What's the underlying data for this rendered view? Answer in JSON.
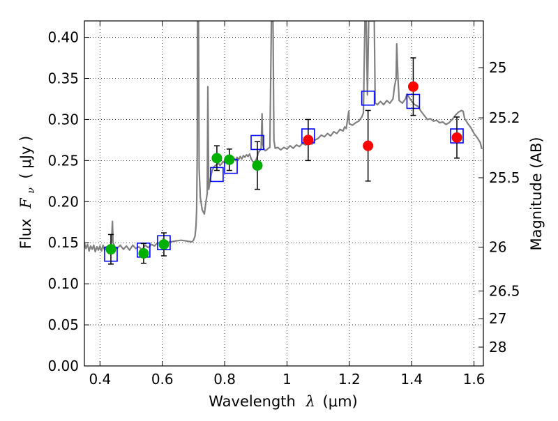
{
  "chart_data": {
    "type": "scatter",
    "xlabel": "Wavelength",
    "xlabel_symbol": "λ",
    "xlabel_unit": "(μm)",
    "ylabel": "Flux",
    "ylabel_symbol": "F",
    "ylabel_subscript": "ν",
    "ylabel_unit": "( μJy )",
    "y2label": "Magnitude (AB)",
    "xlim": [
      0.35,
      1.63
    ],
    "ylim": [
      0.0,
      0.42
    ],
    "grid": true,
    "grid_style": "dotted",
    "x_ticks": [
      0.4,
      0.6,
      0.8,
      1.0,
      1.2,
      1.4,
      1.6
    ],
    "x_tick_labels": [
      "0.4",
      "0.6",
      "0.8",
      "1",
      "1.2",
      "1.4",
      "1.6"
    ],
    "y_ticks": [
      0.0,
      0.05,
      0.1,
      0.15,
      0.2,
      0.25,
      0.3,
      0.35,
      0.4
    ],
    "y_tick_labels": [
      "0.00",
      "0.05",
      "0.10",
      "0.15",
      "0.20",
      "0.25",
      "0.30",
      "0.35",
      "0.40"
    ],
    "y2_ticks": [
      {
        "label": "25",
        "flux": 0.3631
      },
      {
        "label": "25.2",
        "flux": 0.302
      },
      {
        "label": "25.5",
        "flux": 0.2291
      },
      {
        "label": "26",
        "flux": 0.1445
      },
      {
        "label": "26.5",
        "flux": 0.0912
      },
      {
        "label": "27",
        "flux": 0.0575
      },
      {
        "label": "28",
        "flux": 0.0229
      }
    ],
    "colors": {
      "model": "#808080",
      "model_photometry": "#0000ff",
      "green_points": "#00b000",
      "red_points": "#ff0000",
      "errorbar": "#000000"
    },
    "series": [
      {
        "kind": "line",
        "points": [
          [
            0.35,
            0.15
          ],
          [
            0.355,
            0.143
          ],
          [
            0.36,
            0.148
          ],
          [
            0.365,
            0.14
          ],
          [
            0.37,
            0.146
          ],
          [
            0.375,
            0.142
          ],
          [
            0.38,
            0.147
          ],
          [
            0.385,
            0.139
          ],
          [
            0.39,
            0.145
          ],
          [
            0.395,
            0.141
          ],
          [
            0.4,
            0.146
          ],
          [
            0.405,
            0.14
          ],
          [
            0.41,
            0.147
          ],
          [
            0.415,
            0.141
          ],
          [
            0.42,
            0.145
          ],
          [
            0.425,
            0.142
          ],
          [
            0.43,
            0.146
          ],
          [
            0.435,
            0.143
          ],
          [
            0.438,
            0.158
          ],
          [
            0.44,
            0.176
          ],
          [
            0.442,
            0.15
          ],
          [
            0.448,
            0.145
          ],
          [
            0.455,
            0.143
          ],
          [
            0.465,
            0.147
          ],
          [
            0.475,
            0.142
          ],
          [
            0.485,
            0.146
          ],
          [
            0.495,
            0.141
          ],
          [
            0.505,
            0.147
          ],
          [
            0.515,
            0.143
          ],
          [
            0.525,
            0.145
          ],
          [
            0.535,
            0.141
          ],
          [
            0.545,
            0.147
          ],
          [
            0.555,
            0.144
          ],
          [
            0.565,
            0.148
          ],
          [
            0.575,
            0.146
          ],
          [
            0.585,
            0.15
          ],
          [
            0.595,
            0.149
          ],
          [
            0.605,
            0.153
          ],
          [
            0.615,
            0.15
          ],
          [
            0.625,
            0.151
          ],
          [
            0.64,
            0.152
          ],
          [
            0.66,
            0.153
          ],
          [
            0.68,
            0.152
          ],
          [
            0.695,
            0.151
          ],
          [
            0.7,
            0.153
          ],
          [
            0.705,
            0.158
          ],
          [
            0.708,
            0.17
          ],
          [
            0.71,
            0.19
          ],
          [
            0.712,
            0.26
          ],
          [
            0.713,
            0.42
          ],
          [
            0.716,
            0.42
          ],
          [
            0.718,
            0.24
          ],
          [
            0.722,
            0.205
          ],
          [
            0.728,
            0.19
          ],
          [
            0.735,
            0.185
          ],
          [
            0.74,
            0.2
          ],
          [
            0.744,
            0.21
          ],
          [
            0.746,
            0.34
          ],
          [
            0.749,
            0.215
          ],
          [
            0.755,
            0.23
          ],
          [
            0.76,
            0.238
          ],
          [
            0.765,
            0.242
          ],
          [
            0.77,
            0.244
          ],
          [
            0.775,
            0.245
          ],
          [
            0.78,
            0.247
          ],
          [
            0.785,
            0.244
          ],
          [
            0.79,
            0.246
          ],
          [
            0.795,
            0.249
          ],
          [
            0.8,
            0.247
          ],
          [
            0.805,
            0.251
          ],
          [
            0.81,
            0.248
          ],
          [
            0.815,
            0.252
          ],
          [
            0.82,
            0.249
          ],
          [
            0.825,
            0.251
          ],
          [
            0.83,
            0.253
          ],
          [
            0.835,
            0.25
          ],
          [
            0.84,
            0.254
          ],
          [
            0.845,
            0.251
          ],
          [
            0.85,
            0.255
          ],
          [
            0.855,
            0.252
          ],
          [
            0.86,
            0.256
          ],
          [
            0.865,
            0.254
          ],
          [
            0.87,
            0.257
          ],
          [
            0.875,
            0.255
          ],
          [
            0.88,
            0.258
          ],
          [
            0.885,
            0.252
          ],
          [
            0.89,
            0.249
          ],
          [
            0.895,
            0.248
          ],
          [
            0.9,
            0.25
          ],
          [
            0.905,
            0.255
          ],
          [
            0.908,
            0.26
          ],
          [
            0.913,
            0.262
          ],
          [
            0.917,
            0.265
          ],
          [
            0.92,
            0.307
          ],
          [
            0.922,
            0.27
          ],
          [
            0.925,
            0.265
          ],
          [
            0.93,
            0.262
          ],
          [
            0.935,
            0.263
          ],
          [
            0.94,
            0.265
          ],
          [
            0.945,
            0.266
          ],
          [
            0.95,
            0.42
          ],
          [
            0.955,
            0.42
          ],
          [
            0.958,
            0.275
          ],
          [
            0.962,
            0.265
          ],
          [
            0.97,
            0.266
          ],
          [
            0.98,
            0.263
          ],
          [
            0.99,
            0.266
          ],
          [
            1.0,
            0.264
          ],
          [
            1.01,
            0.268
          ],
          [
            1.02,
            0.265
          ],
          [
            1.03,
            0.269
          ],
          [
            1.04,
            0.267
          ],
          [
            1.05,
            0.271
          ],
          [
            1.06,
            0.269
          ],
          [
            1.07,
            0.272
          ],
          [
            1.08,
            0.27
          ],
          [
            1.09,
            0.275
          ],
          [
            1.1,
            0.277
          ],
          [
            1.11,
            0.281
          ],
          [
            1.12,
            0.279
          ],
          [
            1.13,
            0.283
          ],
          [
            1.14,
            0.28
          ],
          [
            1.15,
            0.285
          ],
          [
            1.16,
            0.283
          ],
          [
            1.17,
            0.288
          ],
          [
            1.18,
            0.286
          ],
          [
            1.185,
            0.291
          ],
          [
            1.19,
            0.289
          ],
          [
            1.195,
            0.302
          ],
          [
            1.198,
            0.31
          ],
          [
            1.2,
            0.295
          ],
          [
            1.21,
            0.293
          ],
          [
            1.22,
            0.296
          ],
          [
            1.23,
            0.298
          ],
          [
            1.24,
            0.303
          ],
          [
            1.245,
            0.308
          ],
          [
            1.25,
            0.42
          ],
          [
            1.254,
            0.42
          ],
          [
            1.258,
            0.33
          ],
          [
            1.262,
            0.42
          ],
          [
            1.268,
            0.42
          ],
          [
            1.275,
            0.42
          ],
          [
            1.28,
            0.42
          ],
          [
            1.283,
            0.32
          ],
          [
            1.29,
            0.318
          ],
          [
            1.3,
            0.322
          ],
          [
            1.31,
            0.318
          ],
          [
            1.32,
            0.323
          ],
          [
            1.33,
            0.32
          ],
          [
            1.34,
            0.325
          ],
          [
            1.345,
            0.34
          ],
          [
            1.35,
            0.35
          ],
          [
            1.352,
            0.392
          ],
          [
            1.356,
            0.35
          ],
          [
            1.36,
            0.323
          ],
          [
            1.37,
            0.32
          ],
          [
            1.38,
            0.325
          ],
          [
            1.385,
            0.331
          ],
          [
            1.39,
            0.328
          ],
          [
            1.395,
            0.325
          ],
          [
            1.4,
            0.322
          ],
          [
            1.41,
            0.318
          ],
          [
            1.42,
            0.316
          ],
          [
            1.43,
            0.31
          ],
          [
            1.44,
            0.305
          ],
          [
            1.45,
            0.3
          ],
          [
            1.46,
            0.301
          ],
          [
            1.47,
            0.298
          ],
          [
            1.48,
            0.299
          ],
          [
            1.49,
            0.296
          ],
          [
            1.5,
            0.297
          ],
          [
            1.51,
            0.294
          ],
          [
            1.52,
            0.296
          ],
          [
            1.53,
            0.3
          ],
          [
            1.54,
            0.305
          ],
          [
            1.55,
            0.309
          ],
          [
            1.56,
            0.311
          ],
          [
            1.565,
            0.31
          ],
          [
            1.57,
            0.301
          ],
          [
            1.58,
            0.295
          ],
          [
            1.59,
            0.29
          ],
          [
            1.6,
            0.283
          ],
          [
            1.61,
            0.278
          ],
          [
            1.62,
            0.272
          ],
          [
            1.625,
            0.264
          ]
        ]
      },
      {
        "kind": "open-squares",
        "points": [
          [
            0.435,
            0.136
          ],
          [
            0.54,
            0.141
          ],
          [
            0.605,
            0.15
          ],
          [
            0.775,
            0.233
          ],
          [
            0.82,
            0.243
          ],
          [
            0.905,
            0.272
          ],
          [
            1.068,
            0.28
          ],
          [
            1.26,
            0.326
          ],
          [
            1.405,
            0.322
          ],
          [
            1.545,
            0.28
          ]
        ]
      },
      {
        "kind": "filled-circles",
        "color": "green",
        "points": [
          {
            "x": 0.435,
            "y": 0.142,
            "yerr": 0.018
          },
          {
            "x": 0.54,
            "y": 0.137,
            "yerr": 0.012
          },
          {
            "x": 0.605,
            "y": 0.148,
            "yerr": 0.014
          },
          {
            "x": 0.775,
            "y": 0.253,
            "yerr": 0.015
          },
          {
            "x": 0.815,
            "y": 0.251,
            "yerr": 0.013
          },
          {
            "x": 0.905,
            "y": 0.244,
            "yerr": 0.029
          }
        ]
      },
      {
        "kind": "filled-circles",
        "color": "red",
        "points": [
          {
            "x": 1.068,
            "y": 0.275,
            "yerr": 0.025
          },
          {
            "x": 1.26,
            "y": 0.268,
            "yerr": 0.043
          },
          {
            "x": 1.405,
            "y": 0.34,
            "yerr": 0.035
          },
          {
            "x": 1.545,
            "y": 0.278,
            "yerr": 0.025
          }
        ]
      }
    ]
  }
}
